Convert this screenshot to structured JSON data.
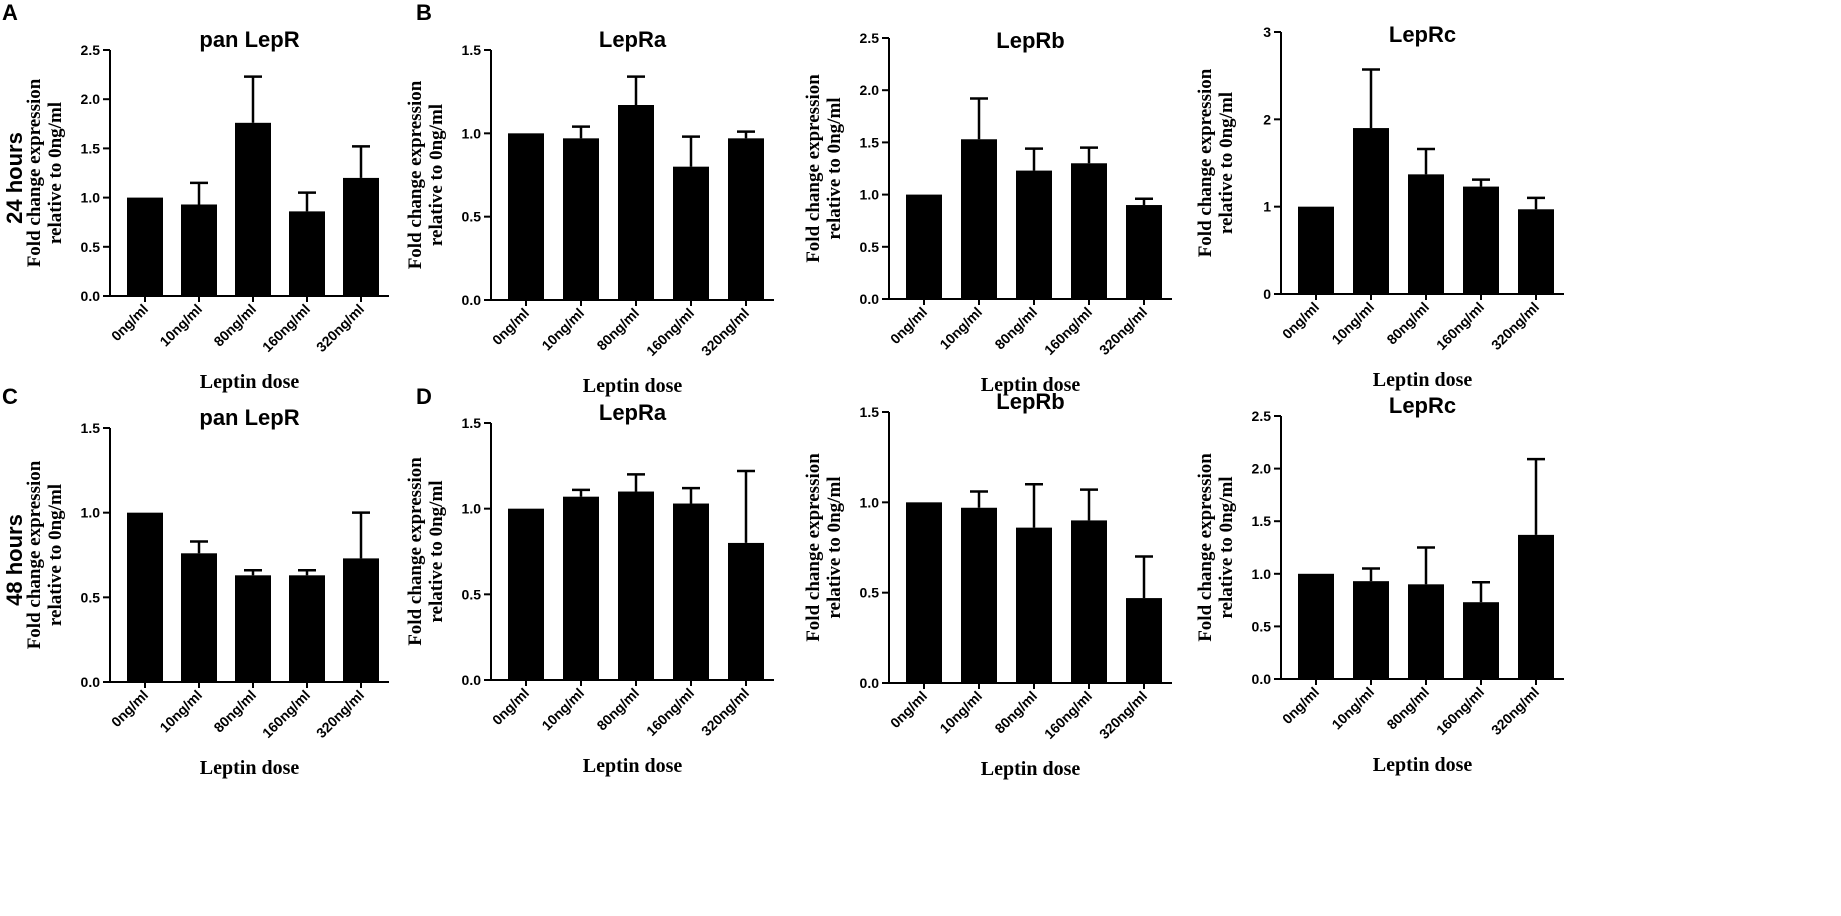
{
  "panel_letters": {
    "a": "A",
    "b": "B",
    "c": "C",
    "d": "D"
  },
  "row_labels": {
    "top": "24 hours",
    "bottom": "48 hours"
  },
  "chart_data": [
    {
      "type": "bar",
      "title": "pan LepR",
      "ylabel_line1": "Fold change expression",
      "ylabel_line2": "relative to 0ng/ml",
      "xlabel": "Leptin dose",
      "categories": [
        "0ng/ml",
        "10ng/ml",
        "80ng/ml",
        "160ng/ml",
        "320ng/ml"
      ],
      "values": [
        1.0,
        0.93,
        1.76,
        0.86,
        1.2
      ],
      "errors": [
        0.0,
        0.22,
        0.47,
        0.19,
        0.32
      ],
      "ylim": [
        0,
        2.5
      ],
      "yticks": [
        "0.0",
        "0.5",
        "1.0",
        "1.5",
        "2.0",
        "2.5"
      ]
    },
    {
      "type": "bar",
      "title": "LepRa",
      "ylabel_line1": "Fold change expression",
      "ylabel_line2": "relative to 0ng/ml",
      "xlabel": "Leptin dose",
      "categories": [
        "0ng/ml",
        "10ng/ml",
        "80ng/ml",
        "160ng/ml",
        "320ng/ml"
      ],
      "values": [
        1.0,
        0.97,
        1.17,
        0.8,
        0.97
      ],
      "errors": [
        0.0,
        0.07,
        0.17,
        0.18,
        0.04
      ],
      "ylim": [
        0,
        1.5
      ],
      "yticks": [
        "0.0",
        "0.5",
        "1.0",
        "1.5"
      ]
    },
    {
      "type": "bar",
      "title": "LepRb",
      "ylabel_line1": "Fold change expression",
      "ylabel_line2": "relative to 0ng/ml",
      "xlabel": "Leptin dose",
      "categories": [
        "0ng/ml",
        "10ng/ml",
        "80ng/ml",
        "160ng/ml",
        "320ng/ml"
      ],
      "values": [
        1.0,
        1.53,
        1.23,
        1.3,
        0.9
      ],
      "errors": [
        0.0,
        0.39,
        0.21,
        0.15,
        0.06
      ],
      "ylim": [
        0,
        2.5
      ],
      "yticks": [
        "0.0",
        "0.5",
        "1.0",
        "1.5",
        "2.0",
        "2.5"
      ]
    },
    {
      "type": "bar",
      "title": "LepRc",
      "ylabel_line1": "Fold change expression",
      "ylabel_line2": "relative to 0ng/ml",
      "xlabel": "Leptin dose",
      "categories": [
        "0ng/ml",
        "10ng/ml",
        "80ng/ml",
        "160ng/ml",
        "320ng/ml"
      ],
      "values": [
        1.0,
        1.9,
        1.37,
        1.23,
        0.97
      ],
      "errors": [
        0.0,
        0.67,
        0.29,
        0.08,
        0.13
      ],
      "ylim": [
        0,
        3
      ],
      "yticks": [
        "0",
        "1",
        "2",
        "3"
      ]
    },
    {
      "type": "bar",
      "title": "pan LepR",
      "ylabel_line1": "Fold change expression",
      "ylabel_line2": "relative to 0ng/ml",
      "xlabel": "Leptin dose",
      "categories": [
        "0ng/ml",
        "10ng/ml",
        "80ng/ml",
        "160ng/ml",
        "320ng/ml"
      ],
      "values": [
        1.0,
        0.76,
        0.63,
        0.63,
        0.73
      ],
      "errors": [
        0.0,
        0.07,
        0.03,
        0.03,
        0.27
      ],
      "ylim": [
        0,
        1.5
      ],
      "yticks": [
        "0.0",
        "0.5",
        "1.0",
        "1.5"
      ]
    },
    {
      "type": "bar",
      "title": "LepRa",
      "ylabel_line1": "Fold change expression",
      "ylabel_line2": "relative to 0ng/ml",
      "xlabel": "Leptin dose",
      "categories": [
        "0ng/ml",
        "10ng/ml",
        "80ng/ml",
        "160ng/ml",
        "320ng/ml"
      ],
      "values": [
        1.0,
        1.07,
        1.1,
        1.03,
        0.8
      ],
      "errors": [
        0.0,
        0.04,
        0.1,
        0.09,
        0.42
      ],
      "ylim": [
        0,
        1.5
      ],
      "yticks": [
        "0.0",
        "0.5",
        "1.0",
        "1.5"
      ]
    },
    {
      "type": "bar",
      "title": "LepRb",
      "ylabel_line1": "Fold change expression",
      "ylabel_line2": "relative to 0ng/ml",
      "xlabel": "Leptin dose",
      "categories": [
        "0ng/ml",
        "10ng/ml",
        "80ng/ml",
        "160ng/ml",
        "320ng/ml"
      ],
      "values": [
        1.0,
        0.97,
        0.86,
        0.9,
        0.47
      ],
      "errors": [
        0.0,
        0.09,
        0.24,
        0.17,
        0.23
      ],
      "ylim": [
        0,
        1.5
      ],
      "yticks": [
        "0.0",
        "0.5",
        "1.0",
        "1.5"
      ]
    },
    {
      "type": "bar",
      "title": "LepRc",
      "ylabel_line1": "Fold change expression",
      "ylabel_line2": "relative to 0ng/ml",
      "xlabel": "Leptin dose",
      "categories": [
        "0ng/ml",
        "10ng/ml",
        "80ng/ml",
        "160ng/ml",
        "320ng/ml"
      ],
      "values": [
        1.0,
        0.93,
        0.9,
        0.73,
        1.37
      ],
      "errors": [
        0.0,
        0.12,
        0.35,
        0.19,
        0.72
      ],
      "ylim": [
        0,
        2.5
      ],
      "yticks": [
        "0.0",
        "0.5",
        "1.0",
        "1.5",
        "2.0",
        "2.5"
      ]
    }
  ]
}
